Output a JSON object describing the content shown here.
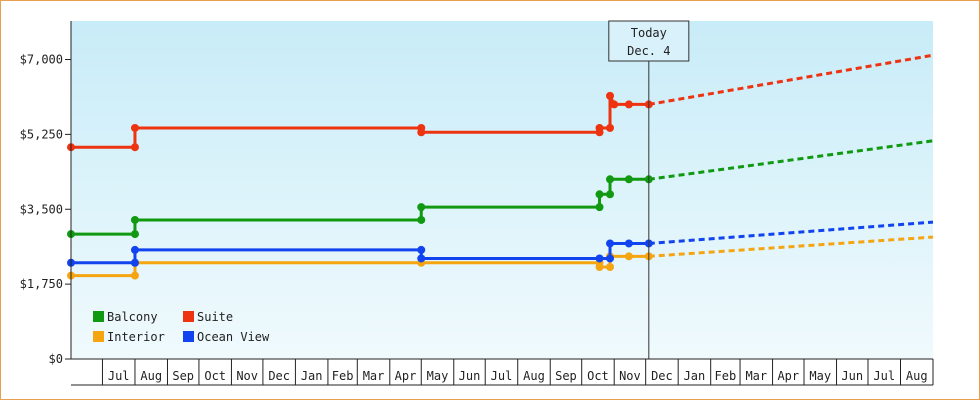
{
  "chart_data": {
    "type": "line",
    "title": "",
    "xlabel": "",
    "ylabel": "",
    "y_ticks": [
      0,
      1750,
      3500,
      5250,
      7000
    ],
    "y_tick_labels": [
      "$0",
      "$1,750",
      "$3,500",
      "$5,250",
      "$7,000"
    ],
    "ylim": [
      0,
      7900
    ],
    "xlim": [
      "2013-06-01",
      "2015-09-01"
    ],
    "month_labels": [
      "Jul",
      "Aug",
      "Sep",
      "Oct",
      "Nov",
      "Dec",
      "Jan",
      "Feb",
      "Mar",
      "Apr",
      "May",
      "Jun",
      "Jul",
      "Aug",
      "Sep",
      "Oct",
      "Nov",
      "Dec",
      "Jan",
      "Feb",
      "Mar",
      "Apr",
      "May",
      "Jun",
      "Jul",
      "Aug"
    ],
    "today_marker": {
      "line1": "Today",
      "line2": "Dec. 4",
      "date": "2014-12-04"
    },
    "grid": false,
    "background": "gradient light blue",
    "legend_position": "bottom-left",
    "series": [
      {
        "name": "Balcony",
        "color": "#119911",
        "points": [
          [
            "2013-06-01",
            2920
          ],
          [
            "2013-08-01",
            2920
          ],
          [
            "2013-08-01",
            3250
          ],
          [
            "2014-05-01",
            3250
          ],
          [
            "2014-05-01",
            3550
          ],
          [
            "2014-10-18",
            3550
          ],
          [
            "2014-10-18",
            3850
          ],
          [
            "2014-10-28",
            3850
          ],
          [
            "2014-10-28",
            4200
          ],
          [
            "2014-11-15",
            4200
          ],
          [
            "2014-12-04",
            4200
          ]
        ],
        "projection": [
          [
            "2014-12-04",
            4200
          ],
          [
            "2015-09-01",
            5100
          ]
        ]
      },
      {
        "name": "Suite",
        "color": "#ee3311",
        "points": [
          [
            "2013-06-01",
            4950
          ],
          [
            "2013-08-01",
            4950
          ],
          [
            "2013-08-01",
            5400
          ],
          [
            "2014-05-01",
            5400
          ],
          [
            "2014-05-01",
            5300
          ],
          [
            "2014-10-18",
            5300
          ],
          [
            "2014-10-18",
            5400
          ],
          [
            "2014-10-28",
            5400
          ],
          [
            "2014-10-28",
            6150
          ],
          [
            "2014-11-01",
            5950
          ],
          [
            "2014-11-15",
            5950
          ],
          [
            "2014-12-04",
            5950
          ]
        ],
        "projection": [
          [
            "2014-12-04",
            5950
          ],
          [
            "2015-09-01",
            7100
          ]
        ]
      },
      {
        "name": "Interior",
        "color": "#f5a511",
        "points": [
          [
            "2013-06-01",
            1950
          ],
          [
            "2013-08-01",
            1950
          ],
          [
            "2013-08-01",
            2250
          ],
          [
            "2014-05-01",
            2250
          ],
          [
            "2014-10-18",
            2250
          ],
          [
            "2014-10-18",
            2150
          ],
          [
            "2014-10-28",
            2150
          ],
          [
            "2014-10-28",
            2400
          ],
          [
            "2014-11-15",
            2400
          ],
          [
            "2014-12-04",
            2400
          ]
        ],
        "projection": [
          [
            "2014-12-04",
            2400
          ],
          [
            "2015-09-01",
            2850
          ]
        ]
      },
      {
        "name": "Ocean View",
        "color": "#1144ee",
        "points": [
          [
            "2013-06-01",
            2250
          ],
          [
            "2013-08-01",
            2250
          ],
          [
            "2013-08-01",
            2550
          ],
          [
            "2014-05-01",
            2550
          ],
          [
            "2014-05-01",
            2350
          ],
          [
            "2014-10-18",
            2350
          ],
          [
            "2014-10-28",
            2350
          ],
          [
            "2014-10-28",
            2700
          ],
          [
            "2014-11-15",
            2700
          ],
          [
            "2014-12-04",
            2700
          ]
        ],
        "projection": [
          [
            "2014-12-04",
            2700
          ],
          [
            "2015-09-01",
            3200
          ]
        ]
      }
    ]
  }
}
